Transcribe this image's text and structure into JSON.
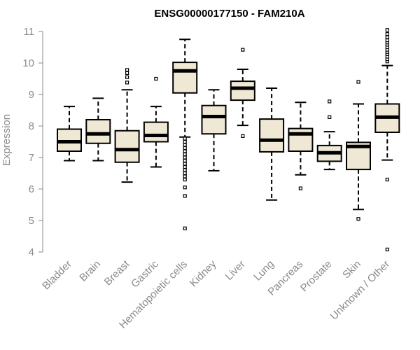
{
  "chart_data": {
    "type": "boxplot",
    "title": "ENSG00000177150 - FAM210A",
    "xlabel": "",
    "ylabel": "Expression",
    "ylim": [
      4,
      11
    ],
    "yticks": [
      4,
      5,
      6,
      7,
      8,
      9,
      10,
      11
    ],
    "box_fill": "#efe8d4",
    "categories": [
      "Bladder",
      "Brain",
      "Breast",
      "Gastric",
      "Hematopoietic cells",
      "Kidney",
      "Liver",
      "Lung",
      "Pancreas",
      "Prostate",
      "Skin",
      "Unknown / Other"
    ],
    "boxes": [
      {
        "min": 6.9,
        "q1": 7.2,
        "median": 7.5,
        "q3": 7.9,
        "max": 8.62,
        "outliers": []
      },
      {
        "min": 6.9,
        "q1": 7.45,
        "median": 7.75,
        "q3": 8.2,
        "max": 8.88,
        "outliers": []
      },
      {
        "min": 6.22,
        "q1": 6.85,
        "median": 7.25,
        "q3": 7.85,
        "max": 9.15,
        "outliers": [
          9.38,
          9.55,
          9.68,
          9.78
        ]
      },
      {
        "min": 6.7,
        "q1": 7.5,
        "median": 7.7,
        "q3": 8.12,
        "max": 8.62,
        "outliers": [
          9.5
        ]
      },
      {
        "min": 7.65,
        "q1": 9.05,
        "median": 9.75,
        "q3": 10.02,
        "max": 10.75,
        "outliers": [
          7.6,
          7.5,
          7.4,
          7.3,
          7.2,
          7.1,
          7.0,
          6.9,
          6.8,
          6.7,
          6.6,
          6.5,
          6.4,
          6.3,
          6.05,
          5.78,
          4.75
        ]
      },
      {
        "min": 6.58,
        "q1": 7.75,
        "median": 8.3,
        "q3": 8.65,
        "max": 9.15,
        "outliers": []
      },
      {
        "min": 8.02,
        "q1": 8.82,
        "median": 9.2,
        "q3": 9.42,
        "max": 9.8,
        "outliers": [
          7.68,
          10.42
        ]
      },
      {
        "min": 5.65,
        "q1": 7.18,
        "median": 7.55,
        "q3": 8.22,
        "max": 9.2,
        "outliers": []
      },
      {
        "min": 6.45,
        "q1": 7.2,
        "median": 7.75,
        "q3": 7.92,
        "max": 8.75,
        "outliers": [
          6.02
        ]
      },
      {
        "min": 6.62,
        "q1": 6.88,
        "median": 7.15,
        "q3": 7.38,
        "max": 7.82,
        "outliers": [
          8.28,
          8.78
        ]
      },
      {
        "min": 5.35,
        "q1": 6.62,
        "median": 7.35,
        "q3": 7.48,
        "max": 8.7,
        "outliers": [
          5.05,
          9.4
        ]
      },
      {
        "min": 6.92,
        "q1": 7.8,
        "median": 8.28,
        "q3": 8.7,
        "max": 9.92,
        "outliers": [
          10.05,
          10.12,
          10.2,
          10.28,
          10.35,
          10.42,
          10.5,
          10.58,
          10.65,
          10.72,
          10.82,
          10.92,
          11.05,
          6.3,
          4.08
        ]
      }
    ]
  }
}
